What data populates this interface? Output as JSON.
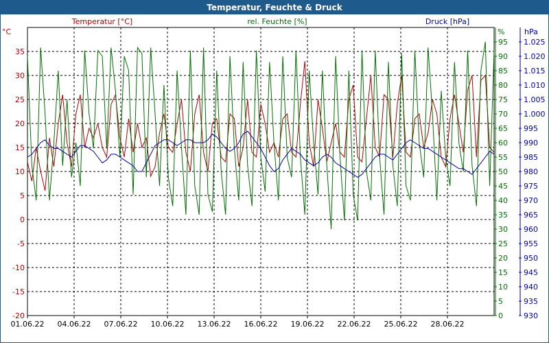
{
  "chart_data": {
    "type": "line",
    "title": "Temperatur, Feuchte & Druck",
    "x_labels": [
      "01.06.22",
      "04.06.22",
      "07.06.22",
      "10.06.22",
      "13.06.22",
      "16.06.22",
      "19.06.22",
      "22.06.22",
      "25.06.22",
      "28.06.22"
    ],
    "axes": {
      "temperature": {
        "unit_label": "°C",
        "legend": "Temperatur [°C]",
        "color": "#b00000",
        "range": [
          -20,
          40
        ],
        "ticks": [
          -20,
          -15,
          -10,
          -5,
          0,
          5,
          10,
          15,
          20,
          25,
          30,
          35
        ]
      },
      "humidity": {
        "unit_label": "%",
        "legend": "rel. Feuchte [%]",
        "color": "#007000",
        "range": [
          0,
          100
        ],
        "ticks": [
          0,
          5,
          10,
          15,
          20,
          25,
          30,
          35,
          40,
          45,
          50,
          55,
          60,
          65,
          70,
          75,
          80,
          85,
          90,
          95
        ]
      },
      "pressure": {
        "unit_label": "hPa",
        "legend": "Druck [hPa]",
        "color": "#0000a0",
        "range": [
          930,
          1030
        ],
        "ticks": [
          "930",
          "935",
          "940",
          "945",
          "950",
          "955",
          "960",
          "965",
          "970",
          "975",
          "980",
          "985",
          "990",
          "995",
          "1.000",
          "1.005",
          "1.010",
          "1.015",
          "1.020",
          "1.025"
        ]
      }
    },
    "series": [
      {
        "name": "Temperatur [°C]",
        "axis": "temperature",
        "color": "#b00000",
        "values": [
          12,
          8,
          15,
          10,
          6,
          17,
          11,
          20,
          26,
          16,
          11,
          22,
          26,
          15,
          19,
          17,
          20,
          15,
          13,
          24,
          26,
          17,
          13,
          21,
          14,
          20,
          15,
          17,
          9,
          11,
          18,
          22,
          15,
          14,
          20,
          25,
          14,
          10,
          22,
          26,
          14,
          10,
          20,
          21,
          13,
          12,
          22,
          21,
          11,
          15,
          25,
          14,
          13,
          24,
          20,
          14,
          16,
          13,
          21,
          22,
          14,
          13,
          24,
          33,
          16,
          11,
          25,
          19,
          12,
          16,
          20,
          14,
          13,
          25,
          28,
          13,
          12,
          21,
          30,
          15,
          13,
          26,
          25,
          13,
          24,
          30,
          14,
          13,
          21,
          22,
          15,
          18,
          25,
          22,
          13,
          11,
          21,
          26,
          20,
          14,
          27,
          30,
          13,
          29,
          30,
          15,
          14
        ]
      },
      {
        "name": "rel. Feuchte [%]",
        "axis": "humidity",
        "color": "#007000",
        "values": [
          90,
          52,
          40,
          93,
          70,
          40,
          60,
          85,
          52,
          75,
          48,
          60,
          45,
          92,
          70,
          58,
          92,
          90,
          58,
          93,
          78,
          55,
          90,
          85,
          42,
          93,
          91,
          48,
          93,
          70,
          45,
          80,
          48,
          38,
          85,
          58,
          35,
          92,
          45,
          35,
          93,
          42,
          36,
          85,
          50,
          35,
          90,
          58,
          40,
          88,
          52,
          38,
          92,
          55,
          43,
          88,
          60,
          40,
          90,
          55,
          48,
          92,
          55,
          35,
          85,
          60,
          42,
          85,
          52,
          30,
          90,
          55,
          33,
          85,
          42,
          33,
          92,
          50,
          40,
          92,
          55,
          35,
          88,
          52,
          38,
          91,
          45,
          40,
          92,
          60,
          48,
          93,
          70,
          40,
          78,
          55,
          45,
          88,
          60,
          50,
          92,
          52,
          38,
          85,
          95,
          45,
          92
        ]
      },
      {
        "name": "Druck [hPa]",
        "axis": "pressure",
        "color": "#0000a0",
        "values": [
          985,
          986,
          988,
          990,
          991,
          989,
          988,
          988,
          987,
          986,
          985,
          987,
          989,
          989,
          988,
          987,
          985,
          983,
          984,
          986,
          986,
          985,
          984,
          983,
          982,
          980,
          980,
          983,
          986,
          989,
          990,
          991,
          991,
          990,
          989,
          990,
          991,
          991,
          990,
          990,
          990,
          991,
          993,
          992,
          990,
          988,
          987,
          988,
          990,
          993,
          994,
          992,
          990,
          988,
          985,
          982,
          980,
          981,
          984,
          986,
          988,
          987,
          986,
          984,
          983,
          982,
          983,
          985,
          986,
          985,
          983,
          982,
          981,
          980,
          979,
          978,
          979,
          981,
          983,
          985,
          986,
          986,
          985,
          984,
          986,
          988,
          990,
          991,
          990,
          989,
          988,
          988,
          987,
          986,
          985,
          984,
          983,
          982,
          981,
          981,
          980,
          979,
          981,
          983,
          985,
          987,
          986
        ]
      }
    ]
  }
}
